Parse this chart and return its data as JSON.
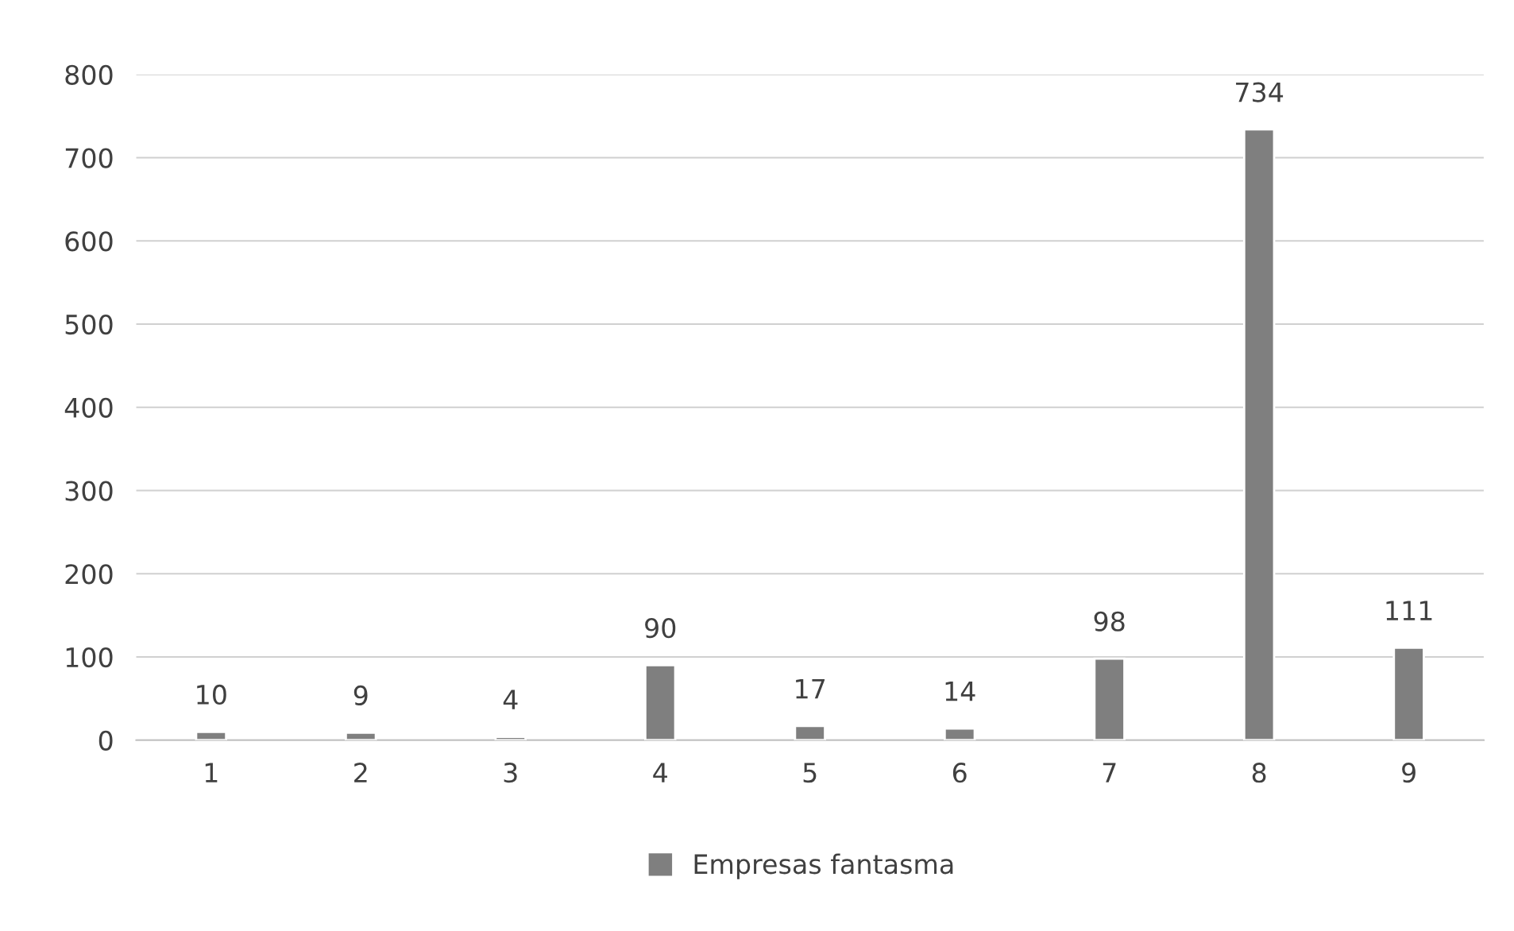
{
  "chart_data": {
    "type": "bar",
    "categories": [
      "1",
      "2",
      "3",
      "4",
      "5",
      "6",
      "7",
      "8",
      "9"
    ],
    "series": [
      {
        "name": "Empresas fantasma",
        "color": "#7f7f7f",
        "values": [
          10,
          9,
          4,
          90,
          17,
          14,
          98,
          734,
          111
        ]
      }
    ],
    "ylim": [
      0,
      800
    ],
    "yticks": [
      0,
      100,
      200,
      300,
      400,
      500,
      600,
      700,
      800
    ],
    "grid": "y",
    "legend": "bottom",
    "data_labels": true
  }
}
